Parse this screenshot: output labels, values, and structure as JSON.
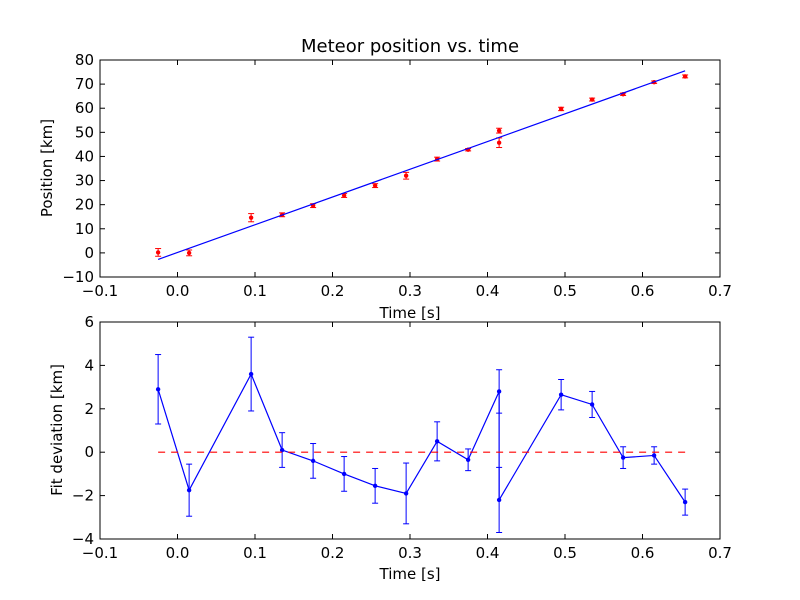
{
  "chart_data": [
    {
      "type": "scatter",
      "title": "Meteor position vs. time",
      "xlabel": "Time [s]",
      "ylabel": "Position [km]",
      "xlim": [
        -0.1,
        0.7
      ],
      "ylim": [
        -10,
        80
      ],
      "xticks": [
        "−0.1",
        "0.0",
        "0.1",
        "0.2",
        "0.3",
        "0.4",
        "0.5",
        "0.6",
        "0.7"
      ],
      "yticks": [
        "−10",
        "0",
        "10",
        "20",
        "30",
        "40",
        "50",
        "60",
        "70",
        "80"
      ],
      "grid": false,
      "series": [
        {
          "kind": "points-with-errorbars",
          "color": "#ff0000",
          "x": [
            -0.025,
            0.015,
            0.095,
            0.135,
            0.175,
            0.215,
            0.255,
            0.295,
            0.335,
            0.375,
            0.415,
            0.415,
            0.495,
            0.535,
            0.575,
            0.615,
            0.655
          ],
          "y": [
            0.2,
            0.0,
            14.6,
            15.8,
            19.6,
            23.8,
            27.9,
            32.0,
            38.9,
            42.8,
            50.7,
            45.7,
            59.7,
            63.6,
            65.8,
            70.8,
            73.2
          ],
          "err": [
            1.6,
            1.2,
            1.7,
            0.8,
            0.8,
            0.8,
            0.8,
            1.4,
            0.8,
            0.5,
            1.0,
            2.0,
            0.7,
            0.6,
            0.5,
            0.5,
            0.6
          ]
        },
        {
          "kind": "fit-line",
          "color": "#0000ff",
          "x": [
            -0.025,
            0.655
          ],
          "y": [
            -2.7,
            75.5
          ]
        }
      ]
    },
    {
      "type": "line",
      "xlabel": "Time [s]",
      "ylabel": "Fit deviation [km]",
      "xlim": [
        -0.1,
        0.7
      ],
      "ylim": [
        -4,
        6
      ],
      "xticks": [
        "−0.1",
        "0.0",
        "0.1",
        "0.2",
        "0.3",
        "0.4",
        "0.5",
        "0.6",
        "0.7"
      ],
      "yticks": [
        "−4",
        "−2",
        "0",
        "2",
        "4",
        "6"
      ],
      "grid": false,
      "series": [
        {
          "kind": "line-with-errorbars",
          "color": "#0000ff",
          "x": [
            -0.025,
            0.015,
            0.095,
            0.135,
            0.175,
            0.215,
            0.255,
            0.295,
            0.335,
            0.375,
            0.415,
            0.415,
            0.495,
            0.535,
            0.575,
            0.615,
            0.655
          ],
          "y": [
            2.9,
            -1.75,
            3.6,
            0.1,
            -0.4,
            -1.0,
            -1.55,
            -1.9,
            0.5,
            -0.35,
            2.8,
            -2.2,
            2.65,
            2.2,
            -0.25,
            -0.15,
            -2.3
          ],
          "err": [
            1.6,
            1.2,
            1.7,
            0.8,
            0.8,
            0.8,
            0.8,
            1.4,
            0.9,
            0.5,
            1.0,
            1.5,
            0.7,
            0.6,
            0.5,
            0.4,
            0.6
          ]
        },
        {
          "kind": "zero-line",
          "color": "#ff0000",
          "dashed": true,
          "x": [
            -0.025,
            0.655
          ],
          "y": [
            0,
            0
          ]
        }
      ]
    }
  ]
}
